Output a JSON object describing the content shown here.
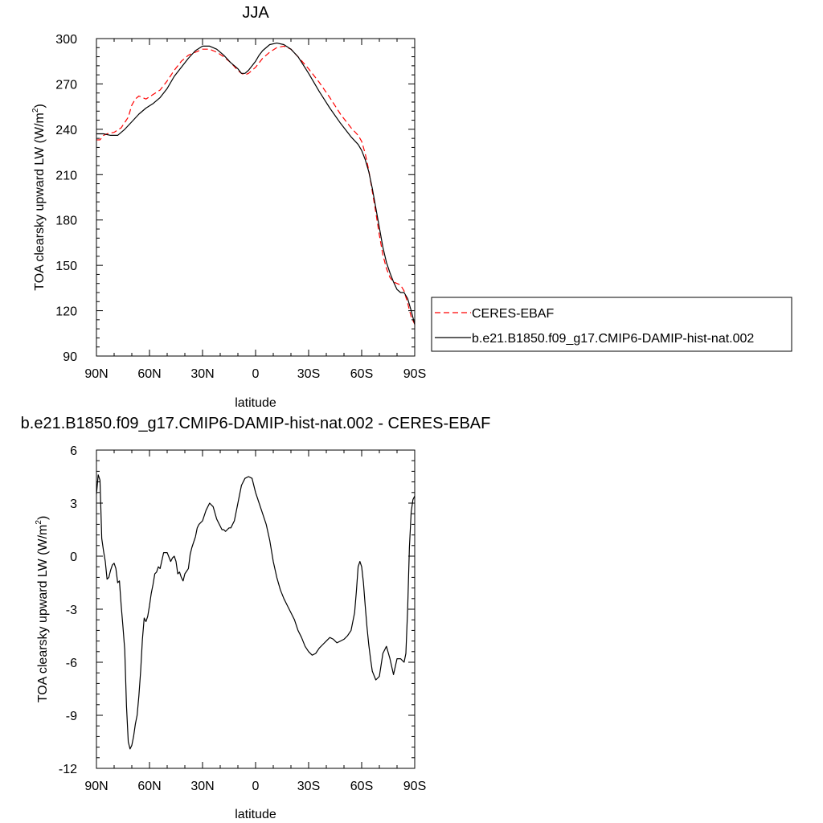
{
  "chart_data": [
    {
      "type": "line",
      "title": "JJA",
      "xlabel": "latitude",
      "ylabel": "TOA clearsky upward LW (W/m²)",
      "ylabel_main": "TOA clearsky upward LW (W/m",
      "ylabel_sup": "2",
      "ylabel_end": ")",
      "xlim": [
        90,
        -90
      ],
      "ylim": [
        90,
        300
      ],
      "xticks": [
        90,
        60,
        30,
        0,
        -30,
        -60,
        -90
      ],
      "xtick_labels": [
        "90N",
        "60N",
        "30N",
        "0",
        "30S",
        "60S",
        "90S"
      ],
      "yticks": [
        90,
        120,
        150,
        180,
        210,
        240,
        270,
        300
      ],
      "ytick_labels": [
        "90",
        "120",
        "150",
        "180",
        "210",
        "240",
        "270",
        "300"
      ],
      "grid": false,
      "legend_position": "right",
      "series": [
        {
          "name": "CERES-EBAF",
          "color": "#ff0000",
          "dash": "dashed",
          "x": [
            90,
            88,
            86,
            84,
            80,
            76,
            72,
            70,
            68,
            66,
            62,
            58,
            54,
            50,
            46,
            42,
            38,
            34,
            30,
            26,
            22,
            18,
            14,
            10,
            8,
            6,
            4,
            2,
            0,
            -2,
            -4,
            -8,
            -12,
            -16,
            -20,
            -24,
            -30,
            -36,
            -42,
            -48,
            -54,
            -58,
            -60,
            -62,
            -64,
            -66,
            -68,
            -70,
            -72,
            -74,
            -76,
            -78,
            -80,
            -82,
            -84,
            -86,
            -88,
            -90
          ],
          "values": [
            233,
            233,
            236,
            237,
            238,
            241,
            248,
            256,
            260,
            262,
            260,
            263,
            266,
            272,
            279,
            285,
            289,
            291,
            293,
            293,
            291,
            288,
            284,
            279,
            277,
            276,
            277,
            279,
            281,
            284,
            287,
            291,
            294,
            295,
            293,
            288,
            280,
            271,
            261,
            250,
            241,
            236,
            232,
            224,
            213,
            199,
            185,
            170,
            157,
            148,
            142,
            139,
            138,
            137,
            133,
            125,
            116,
            111
          ]
        },
        {
          "name": "b.e21.B1850.f09_g17.CMIP6-DAMIP-hist-nat.002",
          "color": "#000000",
          "dash": "solid",
          "x": [
            90,
            86,
            82,
            78,
            74,
            70,
            66,
            62,
            58,
            54,
            50,
            46,
            42,
            38,
            34,
            30,
            26,
            22,
            18,
            14,
            10,
            8,
            6,
            4,
            2,
            0,
            -2,
            -4,
            -8,
            -12,
            -16,
            -20,
            -24,
            -30,
            -36,
            -42,
            -48,
            -54,
            -58,
            -60,
            -62,
            -64,
            -66,
            -68,
            -70,
            -72,
            -74,
            -76,
            -78,
            -80,
            -82,
            -84,
            -86,
            -88,
            -90
          ],
          "values": [
            237,
            237,
            236,
            236,
            240,
            245,
            250,
            254,
            257,
            261,
            267,
            275,
            281,
            287,
            292,
            295,
            295,
            293,
            289,
            284,
            280,
            277,
            277,
            279,
            282,
            285,
            289,
            292,
            296,
            297,
            296,
            293,
            288,
            277,
            265,
            254,
            244,
            235,
            230,
            226,
            220,
            212,
            201,
            188,
            175,
            162,
            152,
            145,
            139,
            134,
            132,
            132,
            128,
            120,
            111
          ]
        }
      ]
    },
    {
      "type": "line",
      "title": "b.e21.B1850.f09_g17.CMIP6-DAMIP-hist-nat.002 - CERES-EBAF",
      "xlabel": "latitude",
      "ylabel": "TOA clearsky upward LW (W/m²)",
      "ylabel_main": "TOA clearsky upward LW (W/m",
      "ylabel_sup": "2",
      "ylabel_end": ")",
      "xlim": [
        90,
        -90
      ],
      "ylim": [
        -12,
        6
      ],
      "xticks": [
        90,
        60,
        30,
        0,
        -30,
        -60,
        -90
      ],
      "xtick_labels": [
        "90N",
        "60N",
        "30N",
        "0",
        "30S",
        "60S",
        "90S"
      ],
      "yticks": [
        -12,
        -9,
        -6,
        -3,
        0,
        3,
        6
      ],
      "ytick_labels": [
        "-12",
        "-9",
        "-6",
        "-3",
        "0",
        "3",
        "6"
      ],
      "grid": false,
      "series": [
        {
          "color": "#000000",
          "dash": "solid",
          "x": [
            90,
            89,
            88,
            87,
            86,
            85,
            84,
            83,
            82,
            81,
            80,
            79,
            78,
            77,
            76,
            75,
            74,
            73,
            72,
            71,
            70,
            69,
            68,
            67,
            66,
            65,
            64,
            63,
            62,
            61,
            60,
            59,
            58,
            57,
            56,
            55,
            54,
            52,
            50,
            48,
            47,
            46,
            45,
            44,
            43,
            42,
            41,
            40,
            38,
            37,
            36,
            34,
            33,
            32,
            30,
            28,
            26,
            24,
            22,
            20,
            19,
            18,
            17,
            16,
            15,
            14,
            12,
            10,
            8,
            6,
            4,
            2,
            0,
            -2,
            -4,
            -6,
            -8,
            -10,
            -12,
            -14,
            -16,
            -18,
            -20,
            -22,
            -24,
            -26,
            -28,
            -30,
            -32,
            -34,
            -36,
            -38,
            -40,
            -42,
            -44,
            -46,
            -48,
            -50,
            -52,
            -54,
            -56,
            -57,
            -58,
            -59,
            -60,
            -61,
            -62,
            -63,
            -64,
            -65,
            -66,
            -68,
            -70,
            -72,
            -74,
            -76,
            -78,
            -80,
            -82,
            -84,
            -85,
            -86,
            -87,
            -88,
            -89,
            -90
          ],
          "values": [
            3.5,
            4.6,
            4.3,
            1.0,
            0.3,
            -0.3,
            -1.3,
            -1.2,
            -0.8,
            -0.5,
            -0.4,
            -0.7,
            -1.5,
            -1.4,
            -2.8,
            -4.0,
            -5.3,
            -8.5,
            -10.5,
            -10.9,
            -10.7,
            -10.2,
            -9.5,
            -9.0,
            -7.9,
            -6.5,
            -4.7,
            -3.5,
            -3.7,
            -3.4,
            -2.8,
            -2.1,
            -1.6,
            -1.0,
            -0.9,
            -0.6,
            -0.7,
            0.2,
            0.2,
            -0.3,
            -0.1,
            0.0,
            -0.3,
            -1.0,
            -0.9,
            -1.2,
            -1.4,
            -1.0,
            -0.7,
            0.1,
            0.5,
            1.1,
            1.6,
            1.8,
            2.0,
            2.6,
            3.0,
            2.8,
            2.1,
            1.7,
            1.5,
            1.5,
            1.4,
            1.5,
            1.6,
            1.6,
            2.0,
            3.0,
            4.0,
            4.4,
            4.5,
            4.4,
            3.6,
            3.0,
            2.4,
            1.8,
            0.9,
            -0.3,
            -1.2,
            -1.9,
            -2.4,
            -2.8,
            -3.2,
            -3.6,
            -4.2,
            -4.6,
            -5.1,
            -5.4,
            -5.6,
            -5.5,
            -5.2,
            -5.0,
            -4.8,
            -4.6,
            -4.7,
            -4.9,
            -4.8,
            -4.7,
            -4.5,
            -4.2,
            -3.2,
            -2.0,
            -0.6,
            -0.3,
            -0.6,
            -1.5,
            -2.8,
            -4.0,
            -5.0,
            -5.8,
            -6.5,
            -7.0,
            -6.8,
            -5.5,
            -5.1,
            -5.8,
            -6.7,
            -5.8,
            -5.8,
            -6.0,
            -5.5,
            -3.0,
            0.5,
            2.5,
            3.2,
            3.4
          ]
        }
      ]
    }
  ]
}
